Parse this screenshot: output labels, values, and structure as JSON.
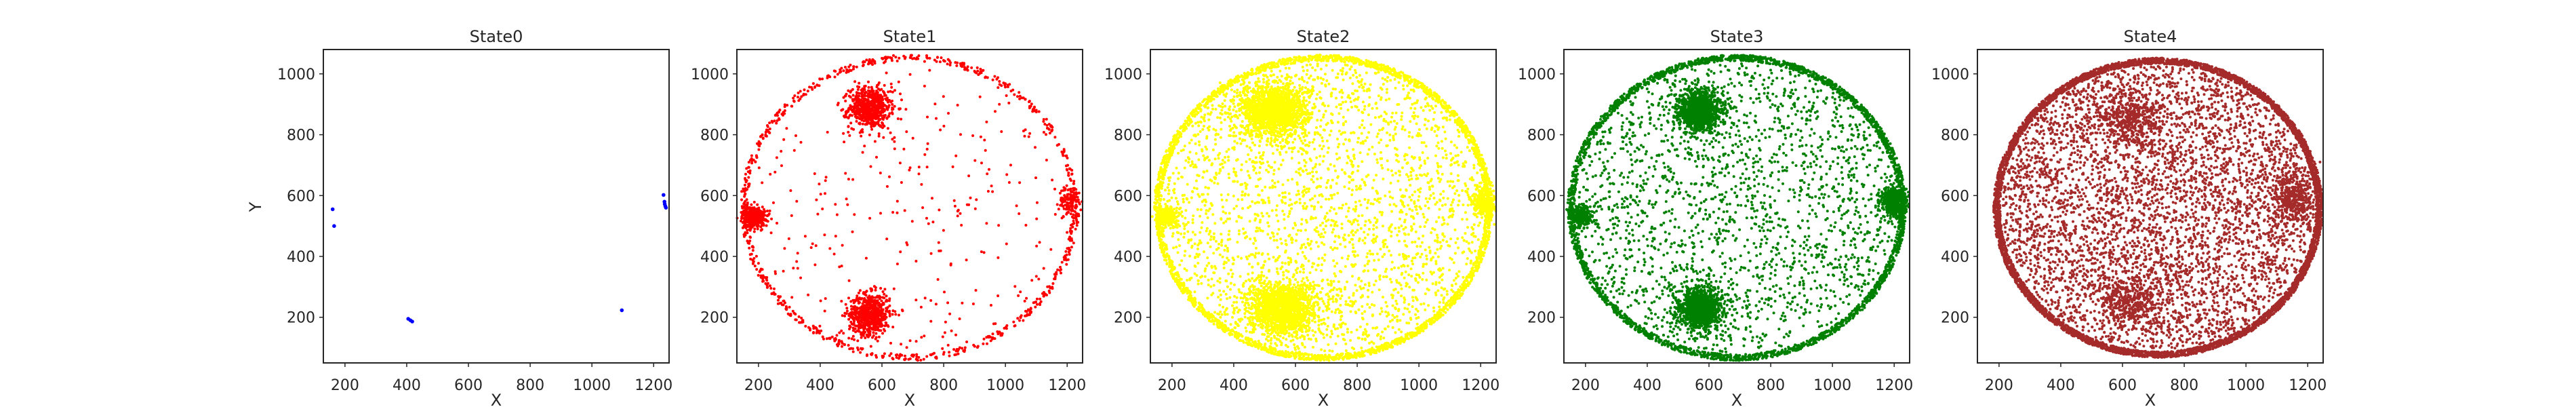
{
  "figure": {
    "panels": [
      {
        "title": "State0",
        "color": "#0000ff"
      },
      {
        "title": "State1",
        "color": "#ff0000"
      },
      {
        "title": "State2",
        "color": "#ffff00"
      },
      {
        "title": "State3",
        "color": "#008000"
      },
      {
        "title": "State4",
        "color": "#a52a2a"
      }
    ]
  },
  "chart_data": [
    {
      "type": "scatter",
      "title": "State0",
      "xlabel": "X",
      "ylabel": "Y",
      "xlim": [
        130,
        1250
      ],
      "ylim": [
        50,
        1080
      ],
      "xticks": [
        200,
        400,
        600,
        800,
        1000,
        1200
      ],
      "yticks": [
        200,
        400,
        600,
        800,
        1000
      ],
      "color": "#0000ff",
      "points": [
        [
          160,
          555
        ],
        [
          165,
          500
        ],
        [
          405,
          195
        ],
        [
          412,
          190
        ],
        [
          418,
          186
        ],
        [
          1097,
          223
        ],
        [
          1232,
          602
        ],
        [
          1235,
          580
        ],
        [
          1238,
          565
        ],
        [
          1240,
          560
        ],
        [
          1236,
          572
        ]
      ]
    },
    {
      "type": "scatter",
      "title": "State1",
      "xlabel": "X",
      "ylabel": "",
      "xlim": [
        130,
        1250
      ],
      "ylim": [
        50,
        1080
      ],
      "xticks": [
        200,
        400,
        600,
        800,
        1000,
        1200
      ],
      "yticks": [
        200,
        400,
        600,
        800,
        1000
      ],
      "color": "#ff0000",
      "pattern": {
        "ring": {
          "cx": 690,
          "cy": 560,
          "rx": 545,
          "ry": 500,
          "n": 750
        },
        "clusters": [
          {
            "x": 560,
            "y": 890,
            "sx": 55,
            "sy": 55,
            "n": 650
          },
          {
            "x": 560,
            "y": 210,
            "sx": 55,
            "sy": 55,
            "n": 650
          },
          {
            "x": 185,
            "y": 530,
            "sx": 30,
            "sy": 28,
            "n": 450
          },
          {
            "x": 1210,
            "y": 580,
            "sx": 30,
            "sy": 40,
            "n": 120
          }
        ],
        "scatter_n": 280
      }
    },
    {
      "type": "scatter",
      "title": "State2",
      "xlabel": "X",
      "ylabel": "",
      "xlim": [
        130,
        1250
      ],
      "ylim": [
        50,
        1080
      ],
      "xticks": [
        200,
        400,
        600,
        800,
        1000,
        1200
      ],
      "yticks": [
        200,
        400,
        600,
        800,
        1000
      ],
      "color": "#ffff00",
      "pattern": {
        "ring": {
          "cx": 690,
          "cy": 560,
          "rx": 545,
          "ry": 500,
          "n": 2500
        },
        "clusters": [
          {
            "x": 530,
            "y": 880,
            "sx": 90,
            "sy": 70,
            "n": 1500
          },
          {
            "x": 560,
            "y": 230,
            "sx": 90,
            "sy": 70,
            "n": 1500
          },
          {
            "x": 185,
            "y": 530,
            "sx": 25,
            "sy": 25,
            "n": 350
          },
          {
            "x": 1210,
            "y": 580,
            "sx": 30,
            "sy": 40,
            "n": 300
          }
        ],
        "scatter_n": 2500
      }
    },
    {
      "type": "scatter",
      "title": "State3",
      "xlabel": "X",
      "ylabel": "",
      "xlim": [
        130,
        1250
      ],
      "ylim": [
        50,
        1080
      ],
      "xticks": [
        200,
        400,
        600,
        800,
        1000,
        1200
      ],
      "yticks": [
        200,
        400,
        600,
        800,
        1000
      ],
      "color": "#008000",
      "pattern": {
        "ring": {
          "cx": 690,
          "cy": 560,
          "rx": 545,
          "ry": 500,
          "n": 2500
        },
        "clusters": [
          {
            "x": 570,
            "y": 880,
            "sx": 55,
            "sy": 55,
            "n": 1200
          },
          {
            "x": 570,
            "y": 230,
            "sx": 55,
            "sy": 55,
            "n": 1200
          },
          {
            "x": 185,
            "y": 530,
            "sx": 30,
            "sy": 28,
            "n": 300
          },
          {
            "x": 1200,
            "y": 580,
            "sx": 35,
            "sy": 40,
            "n": 600
          }
        ],
        "scatter_n": 2000
      }
    },
    {
      "type": "scatter",
      "title": "State4",
      "xlabel": "X",
      "ylabel": "",
      "xlim": [
        130,
        1250
      ],
      "ylim": [
        50,
        1080
      ],
      "xticks": [
        200,
        400,
        600,
        800,
        1000,
        1200
      ],
      "yticks": [
        200,
        400,
        600,
        800,
        1000
      ],
      "color": "#a52a2a",
      "pattern": {
        "ring": {
          "cx": 715,
          "cy": 560,
          "rx": 530,
          "ry": 490,
          "n": 4500
        },
        "clusters": [
          {
            "x": 620,
            "y": 850,
            "sx": 90,
            "sy": 70,
            "n": 400
          },
          {
            "x": 620,
            "y": 260,
            "sx": 90,
            "sy": 70,
            "n": 400
          },
          {
            "x": 1150,
            "y": 590,
            "sx": 60,
            "sy": 80,
            "n": 400
          }
        ],
        "scatter_n": 4500
      }
    }
  ]
}
